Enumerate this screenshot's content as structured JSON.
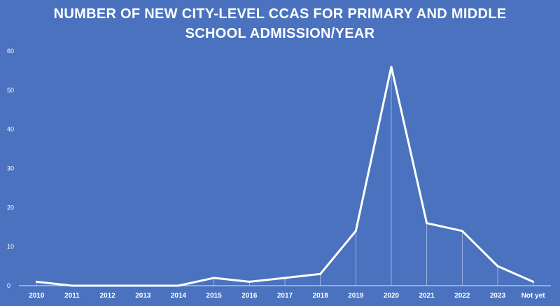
{
  "chart_data": {
    "type": "line",
    "title_lines": [
      "NUMBER OF NEW CITY-LEVEL CCAS FOR PRIMARY AND MIDDLE",
      "SCHOOL ADMISSION/YEAR"
    ],
    "title": "NUMBER OF NEW CITY-LEVEL CCAS FOR PRIMARY AND MIDDLE SCHOOL ADMISSION/YEAR",
    "xlabel": "",
    "ylabel": "",
    "categories": [
      "2010",
      "2011",
      "2012",
      "2013",
      "2014",
      "2015",
      "2016",
      "2017",
      "2018",
      "2019",
      "2020",
      "2021",
      "2022",
      "2023",
      "Not yet"
    ],
    "series": [
      {
        "values": [
          1,
          0,
          0,
          0,
          0,
          2,
          1,
          2,
          3,
          14,
          56,
          16,
          14,
          5,
          1
        ]
      }
    ],
    "ylim": [
      0,
      60
    ],
    "yticks": [
      0,
      10,
      20,
      30,
      40,
      50,
      60
    ],
    "grid": false,
    "drop_lines": true,
    "legend": "none",
    "colors": {
      "background": "#4a72be",
      "line": "#ffffff",
      "text": "#ffffff",
      "axis": "#dfe6f3"
    }
  }
}
